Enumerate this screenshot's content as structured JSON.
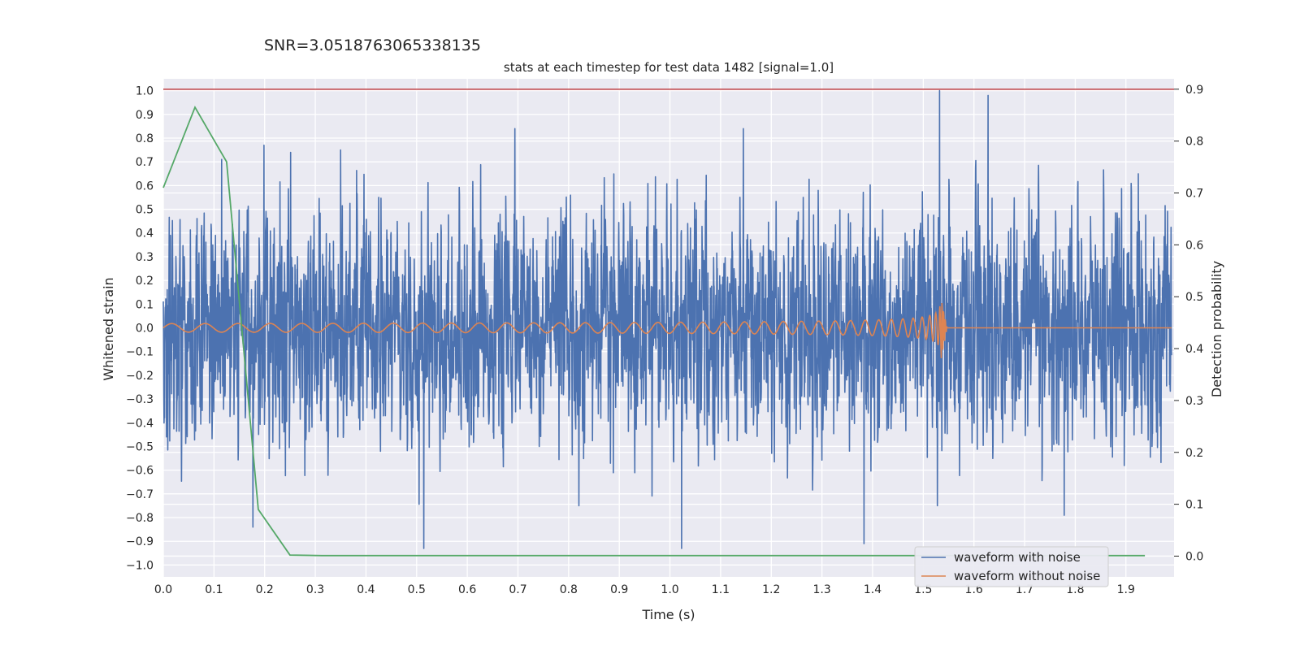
{
  "chart_data": {
    "type": "line",
    "suptitle": "SNR=3.0518763065338135",
    "title": "stats at each timestep for test data 1482 [signal=1.0]",
    "xlabel": "Time (s)",
    "ylabel": "Whitened strain",
    "y2label": "Detection probability",
    "xlim": [
      0.0,
      1.995
    ],
    "ylim": [
      -1.05,
      1.05
    ],
    "y2lim": [
      -0.04,
      0.92
    ],
    "xticks": [
      "0.0",
      "0.1",
      "0.2",
      "0.3",
      "0.4",
      "0.5",
      "0.6",
      "0.7",
      "0.8",
      "0.9",
      "1.0",
      "1.1",
      "1.2",
      "1.3",
      "1.4",
      "1.5",
      "1.6",
      "1.7",
      "1.8",
      "1.9"
    ],
    "yticks": [
      "1.0",
      "0.9",
      "0.8",
      "0.7",
      "0.6",
      "0.5",
      "0.4",
      "0.3",
      "0.2",
      "0.1",
      "0.0",
      "−0.1",
      "−0.2",
      "−0.3",
      "−0.4",
      "−0.5",
      "−0.6",
      "−0.7",
      "−0.8",
      "−0.9",
      "−1.0"
    ],
    "y2ticks": [
      "0.9",
      "0.8",
      "0.7",
      "0.6",
      "0.5",
      "0.4",
      "0.3",
      "0.2",
      "0.1",
      "0.0"
    ],
    "grid": true,
    "legend_position": "lower-right",
    "legend": [
      "waveform with noise",
      "waveform without noise"
    ],
    "colors": {
      "noise": "#4c72b0",
      "clean": "#dd8452",
      "probability": "#55a868",
      "threshold": "#c44e52",
      "background": "#eaeaf2"
    },
    "series": [
      {
        "name": "waveform with noise",
        "description_of_values": "dense noisy whitened strain, amplitude mostly within ±0.5, peaks near 1.0",
        "peaks": [
          {
            "x": 0.115,
            "y": 0.71
          },
          {
            "x": 0.177,
            "y": -0.84
          },
          {
            "x": 0.199,
            "y": 0.77
          },
          {
            "x": 0.251,
            "y": 0.74
          },
          {
            "x": 0.514,
            "y": -0.93
          },
          {
            "x": 0.694,
            "y": 0.84
          },
          {
            "x": 1.023,
            "y": -0.93
          },
          {
            "x": 1.145,
            "y": 0.84
          },
          {
            "x": 1.383,
            "y": -0.91
          },
          {
            "x": 1.532,
            "y": 1.0
          },
          {
            "x": 1.628,
            "y": 0.98
          },
          {
            "x": 1.778,
            "y": -0.79
          }
        ]
      },
      {
        "name": "waveform without noise",
        "description_of_values": "chirp signal with amplitude rising from ~0.02 to ~0.17, merger at 1.535 s, zero afterwards",
        "merger_time": 1.535,
        "peak_amplitude": 0.17
      },
      {
        "axis": "y2",
        "x": [
          0.0,
          0.0625,
          0.125,
          0.1875,
          0.25,
          0.3125,
          0.375,
          0.4375,
          0.5,
          0.5625,
          0.625,
          0.6875,
          0.75,
          0.8125,
          0.875,
          0.9375,
          1.0,
          1.0625,
          1.125,
          1.1875,
          1.25,
          1.3125,
          1.375,
          1.4375,
          1.5,
          1.5625,
          1.625,
          1.6875,
          1.75,
          1.8125,
          1.875,
          1.9375
        ],
        "values": [
          0.71,
          0.865,
          0.76,
          0.09,
          0.002,
          0.001,
          0.001,
          0.001,
          0.001,
          0.001,
          0.001,
          0.001,
          0.001,
          0.001,
          0.001,
          0.001,
          0.001,
          0.001,
          0.001,
          0.001,
          0.001,
          0.001,
          0.001,
          0.001,
          0.001,
          0.001,
          0.001,
          0.001,
          0.001,
          0.001,
          0.001,
          0.001
        ]
      },
      {
        "axis": "y2",
        "type": "threshold",
        "value": 0.9
      }
    ]
  }
}
